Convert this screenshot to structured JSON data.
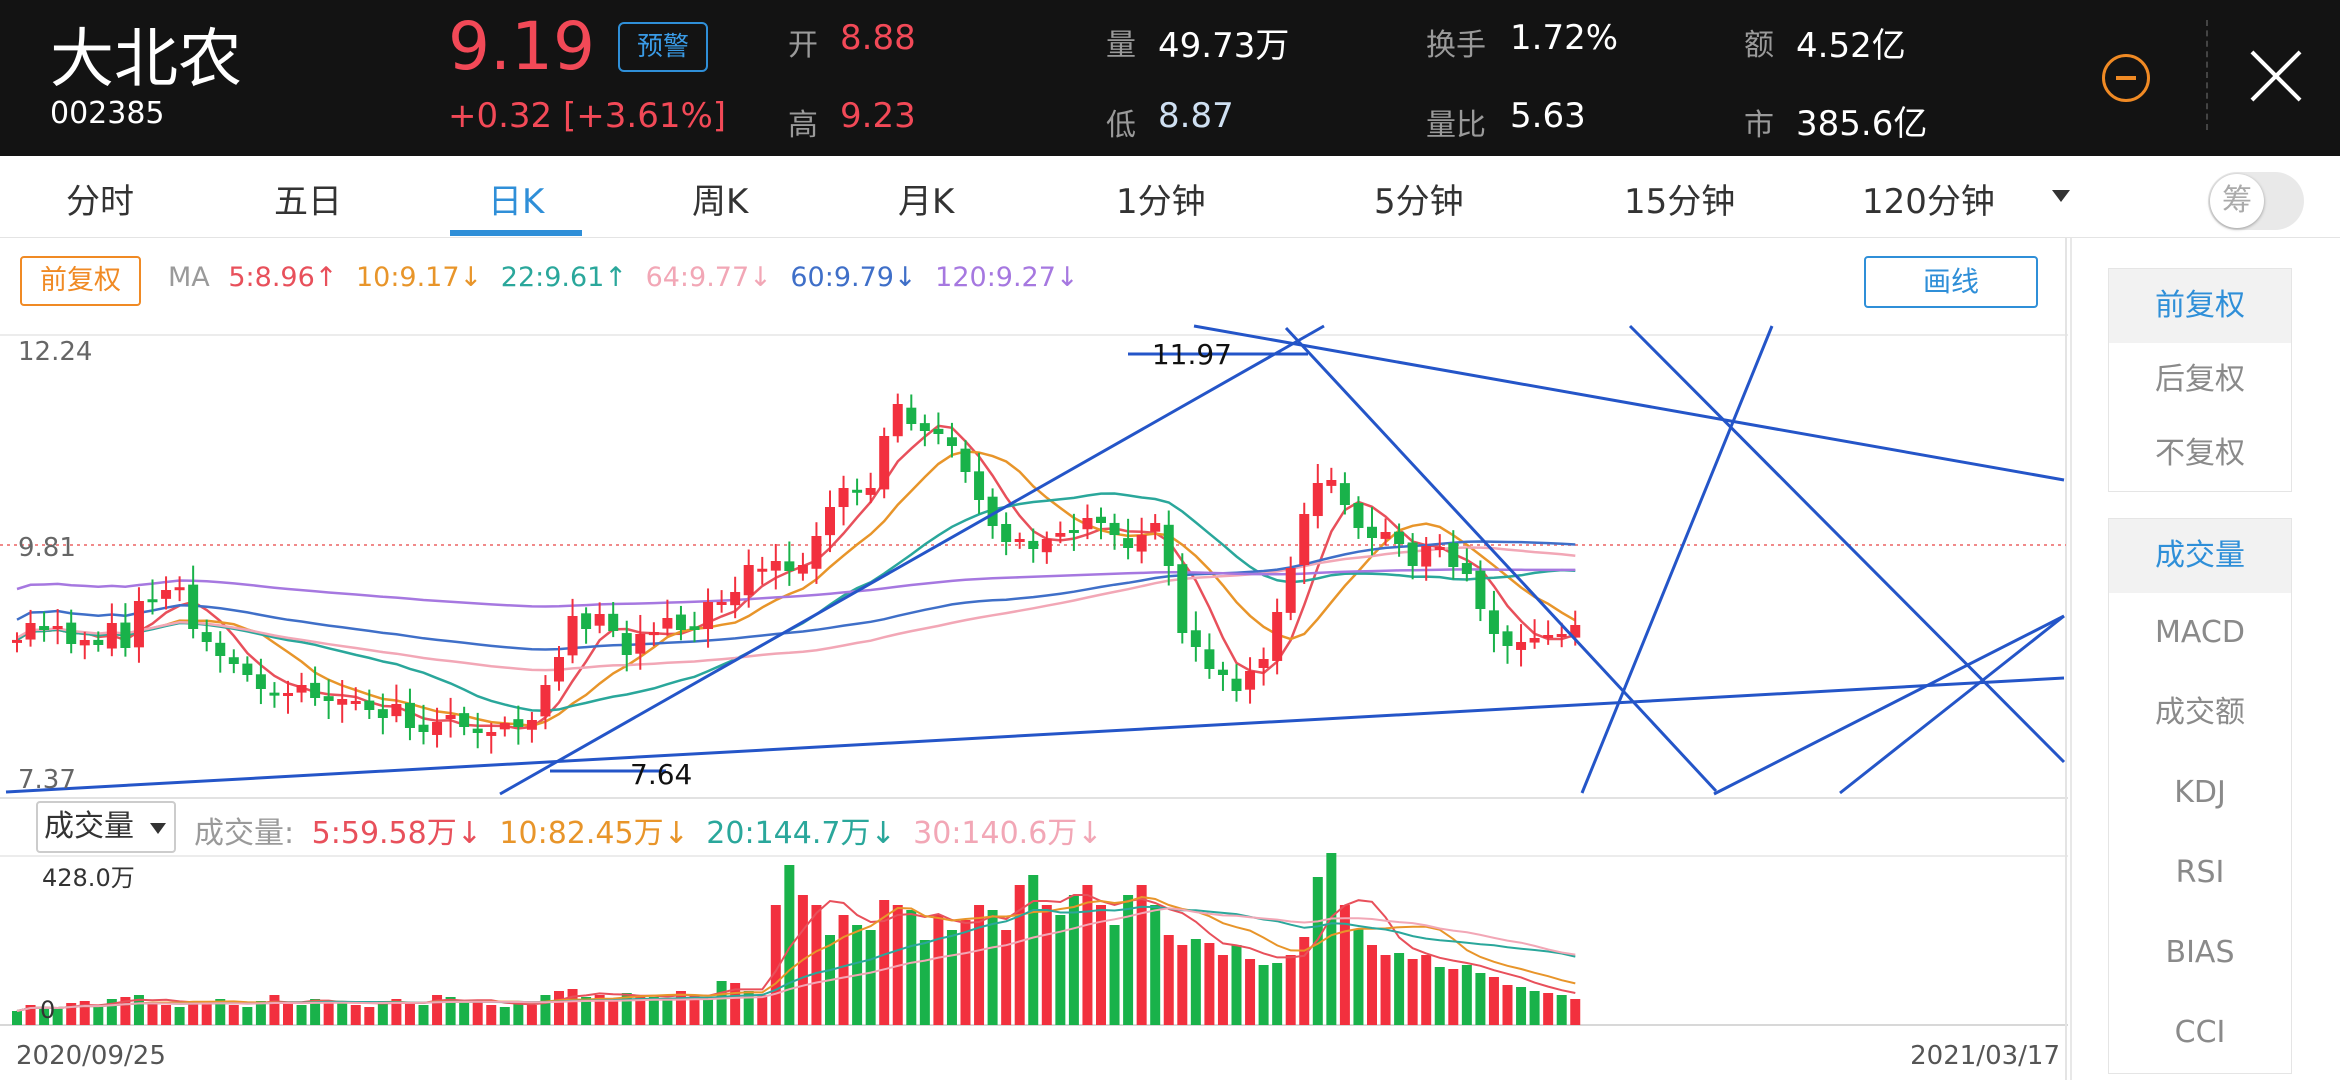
{
  "header": {
    "name": "大北农",
    "code": "002385",
    "price": "9.19",
    "change": "+0.32 [+3.61%]",
    "alert_label": "预警",
    "quotes": [
      {
        "label": "开",
        "value": "8.88",
        "color": "#f24957"
      },
      {
        "label": "高",
        "value": "9.23",
        "color": "#f24957"
      },
      {
        "label": "量",
        "value": "49.73万",
        "color": "#ffffff"
      },
      {
        "label": "低",
        "value": "8.87",
        "color": "#cfe0f2"
      },
      {
        "label": "换手",
        "value": "1.72%",
        "color": "#ffffff"
      },
      {
        "label": "量比",
        "value": "5.63",
        "color": "#ffffff"
      },
      {
        "label": "额",
        "value": "4.52亿",
        "color": "#ffffff"
      },
      {
        "label": "市",
        "value": "385.6亿",
        "color": "#ffffff"
      }
    ]
  },
  "tabs": [
    "分时",
    "五日",
    "日K",
    "周K",
    "月K",
    "1分钟",
    "5分钟",
    "15分钟",
    "120分钟"
  ],
  "active_tab": "日K",
  "toggle_label": "筹",
  "chart": {
    "adj_label": "前复权",
    "ma_label": "MA",
    "ma_items": [
      {
        "text": "5:8.96↑",
        "color": "#e8505b"
      },
      {
        "text": "10:9.17↓",
        "color": "#e8952a"
      },
      {
        "text": "22:9.61↑",
        "color": "#2aa79b"
      },
      {
        "text": "64:9.77↓",
        "color": "#f2a7b6"
      },
      {
        "text": "60:9.79↓",
        "color": "#3f6fc8"
      },
      {
        "text": "120:9.27↓",
        "color": "#a678e0"
      }
    ],
    "draw_label": "画线",
    "y_top": "12.24",
    "y_mid": "9.81",
    "y_bottom": "7.37",
    "high_label": "11.97",
    "low_label": "7.64",
    "vol_select": "成交量",
    "vol_title": "成交量:",
    "vol_items": [
      {
        "text": "5:59.58万↓",
        "color": "#e8505b"
      },
      {
        "text": "10:82.45万↓",
        "color": "#e8952a"
      },
      {
        "text": "20:144.7万↓",
        "color": "#2aa79b"
      },
      {
        "text": "30:140.6万↓",
        "color": "#f2a7b6"
      }
    ],
    "vol_max": "428.0万",
    "vol_zero": "0",
    "date_start": "2020/09/25",
    "date_end": "2021/03/17"
  },
  "sidebar": {
    "adjust": [
      "前复权",
      "后复权",
      "不复权"
    ],
    "indicators": [
      "成交量",
      "MACD",
      "成交额",
      "KDJ",
      "RSI",
      "BIAS",
      "CCI"
    ]
  },
  "colors": {
    "up": "#f2303e",
    "down": "#19b24a",
    "accent": "#2f8fd8",
    "draw_line": "#2455c8"
  },
  "chart_data": {
    "type": "candlestick",
    "range": [
      "2020/09/25",
      "2021/03/17"
    ],
    "price_axis": [
      7.37,
      9.81,
      12.24
    ],
    "high": 11.97,
    "low": 7.64,
    "volume_max": "428.0万"
  }
}
